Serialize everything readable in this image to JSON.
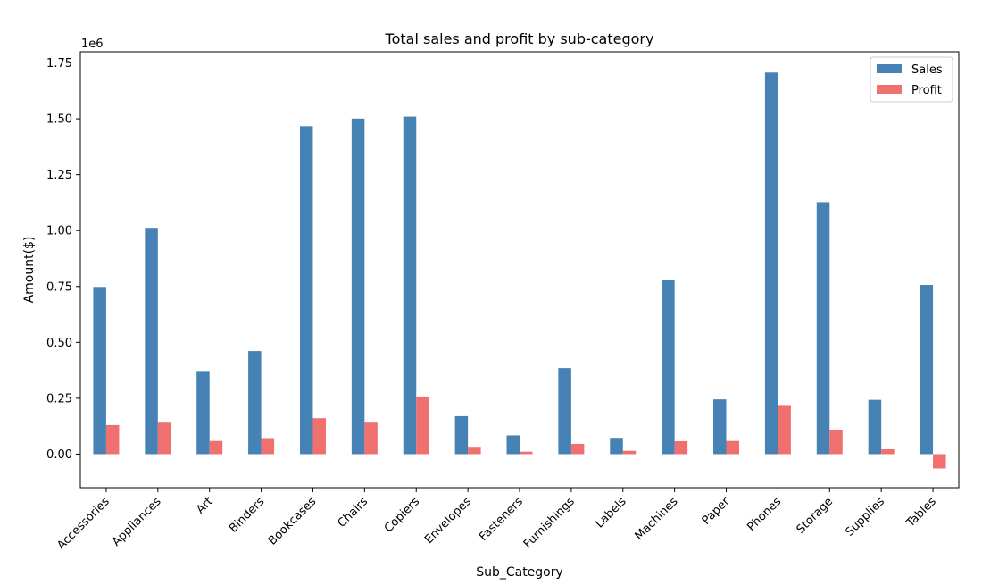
{
  "chart_data": {
    "type": "bar",
    "title": "Total sales and profit by sub-category",
    "xlabel": "Sub_Category",
    "ylabel": "Amount($)",
    "y_offset_label": "1e6",
    "ylim": [
      -0.15,
      1.8
    ],
    "yticks": [
      0.0,
      0.25,
      0.5,
      0.75,
      1.0,
      1.25,
      1.5,
      1.75
    ],
    "ytick_labels": [
      "0.00",
      "0.25",
      "0.50",
      "0.75",
      "1.00",
      "1.25",
      "1.50",
      "1.75"
    ],
    "legend_position": "top-right",
    "categories": [
      "Accessories",
      "Appliances",
      "Art",
      "Binders",
      "Bookcases",
      "Chairs",
      "Copiers",
      "Envelopes",
      "Fasteners",
      "Furnishings",
      "Labels",
      "Machines",
      "Paper",
      "Phones",
      "Storage",
      "Supplies",
      "Tables"
    ],
    "series": [
      {
        "name": "Sales",
        "color": "#4682b4",
        "values": [
          0.748,
          1.012,
          0.372,
          0.461,
          1.467,
          1.501,
          1.51,
          0.17,
          0.084,
          0.385,
          0.073,
          0.78,
          0.245,
          1.707,
          1.127,
          0.243,
          0.757
        ]
      },
      {
        "name": "Profit",
        "color": "#f07070",
        "values": [
          0.13,
          0.141,
          0.059,
          0.072,
          0.161,
          0.141,
          0.258,
          0.029,
          0.011,
          0.046,
          0.015,
          0.058,
          0.059,
          0.216,
          0.108,
          0.022,
          -0.064
        ]
      }
    ]
  }
}
